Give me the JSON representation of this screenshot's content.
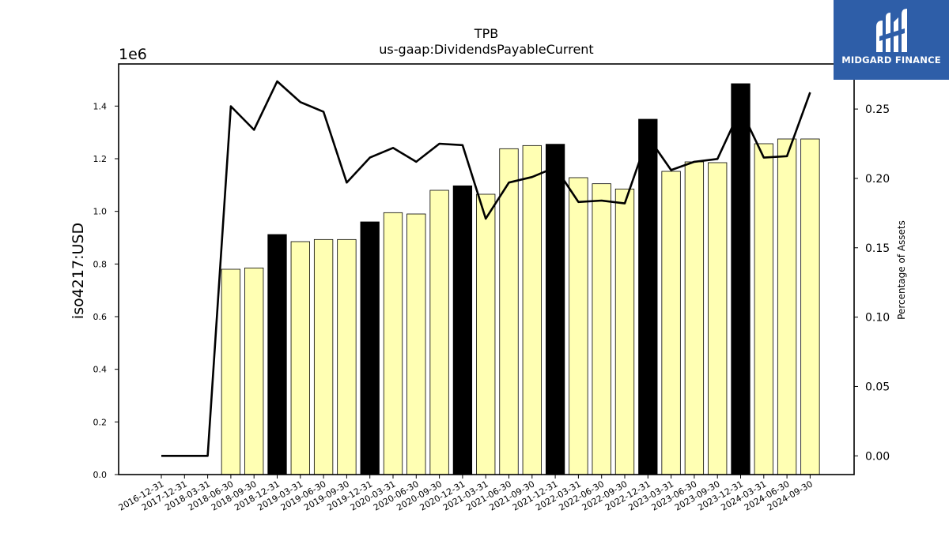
{
  "chart_data": {
    "type": "bar",
    "title": "TPB",
    "subtitle": "us-gaap:DividendsPayableCurrent",
    "ylabel": "iso4217:USD",
    "y_multiplier": "1e6",
    "y2label": "Percentage of Assets",
    "ylim": [
      0,
      1560000
    ],
    "y2lim": [
      -0.0135,
      0.2825
    ],
    "yticks": [
      "0.0",
      "0.2",
      "0.4",
      "0.6",
      "0.8",
      "1.0",
      "1.2",
      "1.4"
    ],
    "y2ticks": [
      "0.00",
      "0.05",
      "0.10",
      "0.15",
      "0.20",
      "0.25"
    ],
    "categories": [
      "2016-12-31",
      "2017-12-31",
      "2018-03-31",
      "2018-06-30",
      "2018-09-30",
      "2018-12-31",
      "2019-03-31",
      "2019-06-30",
      "2019-09-30",
      "2019-12-31",
      "2020-03-31",
      "2020-06-30",
      "2020-09-30",
      "2020-12-31",
      "2021-03-31",
      "2021-06-30",
      "2021-09-30",
      "2021-12-31",
      "2022-03-31",
      "2022-06-30",
      "2022-09-30",
      "2022-12-31",
      "2023-03-31",
      "2023-06-30",
      "2023-09-30",
      "2023-12-31",
      "2024-03-31",
      "2024-06-30",
      "2024-09-30"
    ],
    "series": [
      {
        "type": "bar",
        "values": [
          0,
          0,
          0,
          780000,
          785000,
          912000,
          885000,
          893000,
          893000,
          960000,
          995000,
          990000,
          1080000,
          1097000,
          1065000,
          1238000,
          1250000,
          1255000,
          1128000,
          1105000,
          1085000,
          1350000,
          1152000,
          1188000,
          1185000,
          1485000,
          1257000,
          1275000,
          1275000
        ],
        "annual": [
          true,
          true,
          false,
          false,
          false,
          true,
          false,
          false,
          false,
          true,
          false,
          false,
          false,
          true,
          false,
          false,
          false,
          true,
          false,
          false,
          false,
          true,
          false,
          false,
          false,
          true,
          false,
          false,
          false
        ]
      },
      {
        "type": "line",
        "axis": "secondary",
        "values": [
          0,
          0,
          0,
          0.252,
          0.235,
          0.27,
          0.255,
          0.248,
          0.197,
          0.215,
          0.222,
          0.212,
          0.225,
          0.224,
          0.171,
          0.197,
          0.201,
          0.208,
          0.183,
          0.184,
          0.182,
          0.23,
          0.206,
          0.212,
          0.214,
          0.25,
          0.215,
          0.216,
          0.262
        ]
      }
    ],
    "colors": {
      "annual_bar": "#000000",
      "quarter_bar": "#ffffb3",
      "bar_edge": "#000000",
      "line": "#000000"
    }
  },
  "logo": {
    "text": "MIDGARD FINANCE",
    "background": "#2e5ea8"
  }
}
